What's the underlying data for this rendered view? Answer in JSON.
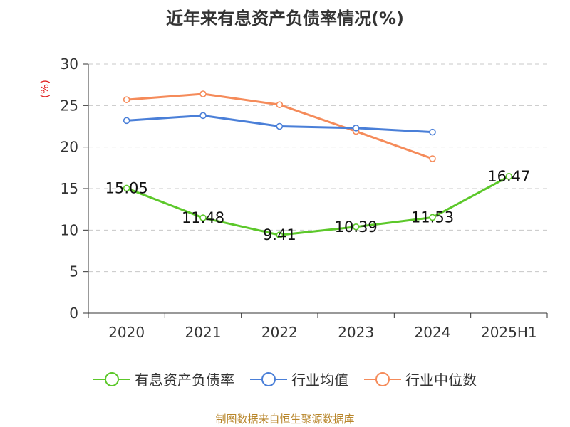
{
  "title": "近年来有息资产负债率情况(%)",
  "source": "制图数据来自恒生聚源数据库",
  "chart_data": {
    "type": "line",
    "title": "近年来有息资产负债率情况(%)",
    "ylabel": "(%)",
    "xlabel": "",
    "categories": [
      "2020",
      "2021",
      "2022",
      "2023",
      "2024",
      "2025H1"
    ],
    "ylim": [
      0,
      30
    ],
    "yticks": [
      0,
      5,
      10,
      15,
      20,
      25,
      30
    ],
    "grid": true,
    "legend_position": "bottom",
    "series": [
      {
        "name": "有息资产负债率",
        "color": "#5cc82a",
        "values": [
          15.05,
          11.48,
          9.41,
          10.39,
          11.53,
          16.47
        ],
        "labels": [
          "15.05",
          "11.48",
          "9.41",
          "10.39",
          "11.53",
          "16.47"
        ]
      },
      {
        "name": "行业均值",
        "color": "#4a7fd8",
        "values": [
          23.2,
          23.8,
          22.5,
          22.3,
          21.8,
          null
        ]
      },
      {
        "name": "行业中位数",
        "color": "#f58b5a",
        "values": [
          25.7,
          26.4,
          25.1,
          21.9,
          18.6,
          null
        ]
      }
    ]
  }
}
